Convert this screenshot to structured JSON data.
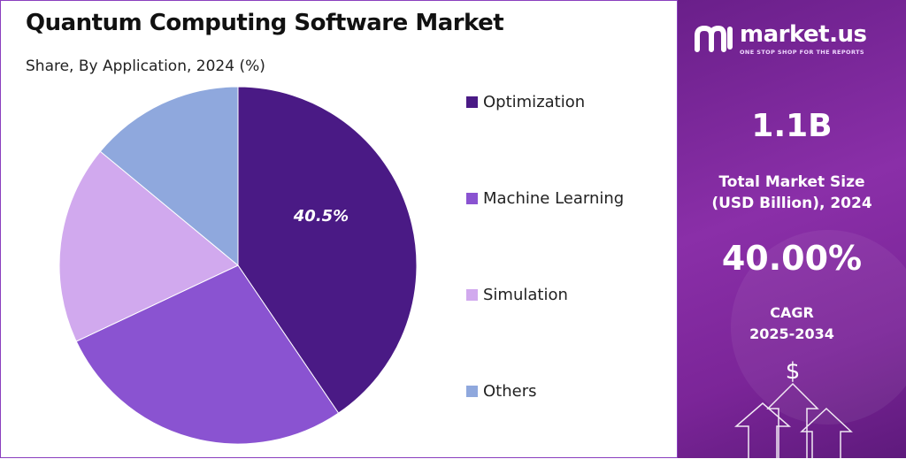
{
  "chart_data": {
    "type": "pie",
    "title": "Quantum Computing Software Market",
    "subtitle": "Share, By Application, 2024 (%)",
    "slices": [
      {
        "label": "Optimization",
        "value": 40.5,
        "color": "#4a1a85",
        "data_label": "40.5%"
      },
      {
        "label": "Machine Learning",
        "value": 27.5,
        "color": "#8a53d1",
        "data_label": ""
      },
      {
        "label": "Simulation",
        "value": 18.0,
        "color": "#d1a9ee",
        "data_label": ""
      },
      {
        "label": "Others",
        "value": 14.0,
        "color": "#8fa8dd",
        "data_label": ""
      }
    ],
    "legend_position": "right",
    "start_angle": "top, clockwise"
  },
  "sidebar": {
    "brand_name": "market.us",
    "brand_tagline": "ONE STOP SHOP FOR THE REPORTS",
    "market_size_value": "1.1B",
    "market_size_label_line1": "Total Market Size",
    "market_size_label_line2": "(USD Billion), 2024",
    "cagr_value": "40.00%",
    "cagr_label_line1": "CAGR",
    "cagr_label_line2": "2025-2034",
    "dollar_symbol": "$"
  },
  "colors": {
    "panel_gradient_start": "#6a1f8a",
    "panel_gradient_end": "#5e1a7c",
    "border_accent": "#8a3fbf"
  }
}
